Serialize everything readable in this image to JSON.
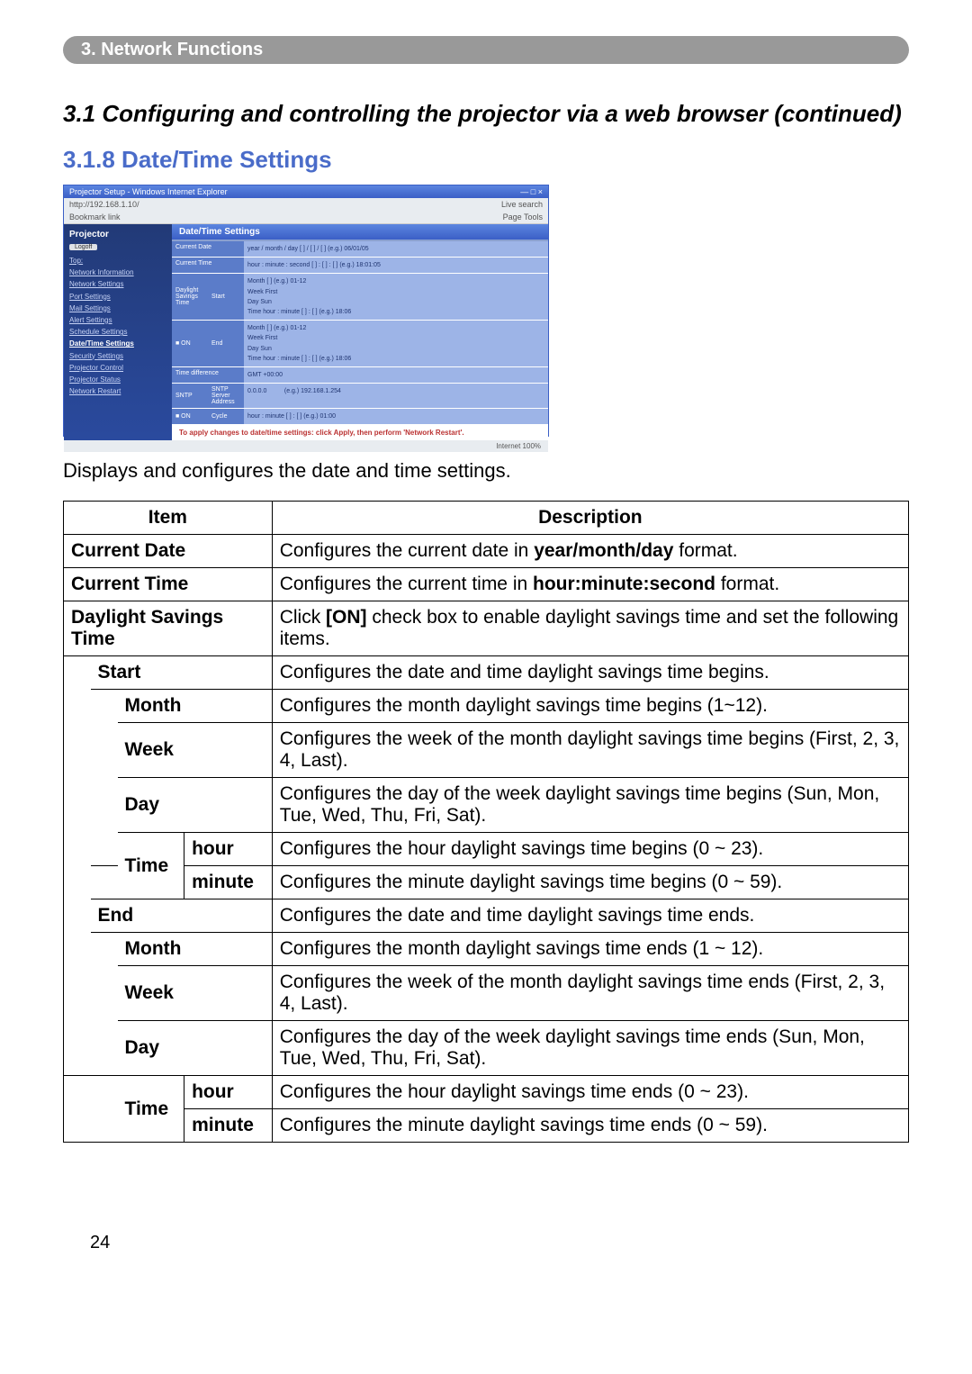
{
  "band": "3. Network Functions",
  "h1": "3.1 Configuring and controlling the projector via a web browser (continued)",
  "h2": "3.1.8 Date/Time Settings",
  "intro": "Displays and configures the date and time settings.",
  "pagenum": "24",
  "shot": {
    "winTitle": "Projector Setup - Windows Internet Explorer",
    "addr": "http://192.168.1.10/",
    "search": "Live search",
    "bookmarks": "Bookmark link",
    "tools": "Page  Tools",
    "panelTitle": "Projector",
    "logoff": "Logoff",
    "nav": {
      "top": "Top:",
      "net": "Network Information",
      "netset": "Network Settings",
      "port": "Port Settings",
      "mail": "Mail Settings",
      "alert": "Alert Settings",
      "sched": "Schedule Settings",
      "datetime": "Date/Time Settings",
      "sec": "Security Settings",
      "ctl": "Projector Control",
      "status": "Projector Status",
      "restart": "Network Restart"
    },
    "mainHead": "Date/Time Settings",
    "rows": {
      "curDate": "Current Date",
      "curDateV": "year / month / day  [  ] / [  ] / [  ]   (e.g.) 06/01/05",
      "curTime": "Current Time",
      "curTimeV": "hour : minute : second  [  ] : [  ] : [  ]   (e.g.) 18:01:05",
      "dst": "Daylight Savings Time",
      "start": "Start",
      "startM": "Month  [  ]   (e.g.) 01-12",
      "startW": "Week  First",
      "startD": "Day  Sun",
      "startT": "Time  hour : minute  [  ] : [  ]   (e.g.) 18:06",
      "on": "■ ON",
      "end": "End",
      "endM": "Month  [  ]   (e.g.) 01-12",
      "endW": "Week  First",
      "endD": "Day  Sun",
      "endT": "Time  hour : minute  [  ] : [  ]   (e.g.) 18:06",
      "td": "Time difference",
      "tdV": "GMT  +00:00",
      "sntp": "SNTP",
      "sntpAddr": "SNTP Server Address",
      "sntpAddrV": "0.0.0.0",
      "sntpEx": "(e.g.) 192.168.1.254",
      "cycle": "Cycle",
      "cycleV": "hour : minute  [  ] : [  ]   (e.g.) 01:00",
      "on2": "■ ON"
    },
    "note": "To apply changes to date/time settings: click Apply, then perform 'Network Restart'.",
    "footer": "Internet                    100%"
  },
  "table": {
    "head": {
      "item": "Item",
      "desc": "Description"
    },
    "rows": [
      {
        "item": "Current Date",
        "desc": "Configures the current date in <b>year/month/day</b> format."
      },
      {
        "item": "Current Time",
        "desc": "Configures the current time in <b>hour:minute:second</b> format."
      },
      {
        "item": "Daylight Savings Time",
        "desc": "Click <b>[ON]</b> check box to enable daylight savings time and set the following items."
      },
      {
        "item": "Start",
        "desc": "Configures the date and time daylight savings time begins."
      },
      {
        "item": "Month",
        "desc": "Configures the month daylight savings time begins (1~12)."
      },
      {
        "item": "Week",
        "desc": "Configures the week of the month daylight savings time begins (First, 2, 3, 4, Last)."
      },
      {
        "item": "Day",
        "desc": "Configures the day of the week daylight savings time begins (Sun, Mon, Tue, Wed, Thu, Fri, Sat)."
      },
      {
        "item": "Time",
        "sub1": "hour",
        "sub2": "minute",
        "desc1": "Configures the hour daylight savings time begins (0 ~ 23).",
        "desc2": "Configures the minute daylight savings time begins (0 ~ 59)."
      },
      {
        "item": "End",
        "desc": "Configures the date and time daylight savings time ends."
      },
      {
        "item": "Month",
        "desc": "Configures the month daylight savings time ends (1 ~ 12)."
      },
      {
        "item": "Week",
        "desc": "Configures the week of the month daylight savings time ends (First, 2, 3, 4, Last)."
      },
      {
        "item": "Day",
        "desc": "Configures the day of the week daylight savings time ends (Sun, Mon, Tue, Wed, Thu, Fri, Sat)."
      },
      {
        "item": "Time",
        "sub1": "hour",
        "sub2": "minute",
        "desc1": "Configures the hour daylight savings time ends (0 ~ 23).",
        "desc2": "Configures the minute daylight savings time ends (0 ~ 59)."
      }
    ]
  }
}
